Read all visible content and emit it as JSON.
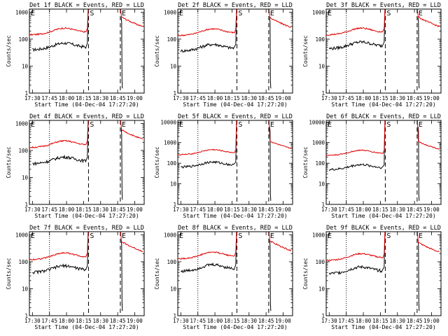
{
  "chart_data": [
    {
      "type": "line",
      "title": "Det 1f BLACK = Events, RED = LLD",
      "xlabel": "Start Time (04-Dec-04 17:27:20)",
      "ylabel": "Counts/sec",
      "x_ticks": [
        "17:30",
        "17:45",
        "18:00",
        "18:15",
        "18:30",
        "18:45",
        "19:00"
      ],
      "y_ticks": [
        "1",
        "10",
        "100",
        "1000"
      ],
      "ylim": [
        1,
        1300
      ],
      "yscale": "log",
      "markers": [
        "E",
        "S",
        "E"
      ],
      "series": [
        {
          "color": "#000000",
          "level": 50
        },
        {
          "color": "#e00000",
          "level": 180
        }
      ]
    },
    {
      "type": "line",
      "title": "Det 2f BLACK = Events, RED = LLD",
      "xlabel": "Start Time (04-Dec-04 17:27:20)",
      "ylabel": "Counts/sec",
      "x_ticks": [
        "17:30",
        "17:45",
        "18:00",
        "18:15",
        "18:30",
        "18:45",
        "19:00"
      ],
      "y_ticks": [
        "1",
        "10",
        "100",
        "1000"
      ],
      "ylim": [
        1,
        1300
      ],
      "yscale": "log",
      "markers": [
        "E",
        "S",
        "E"
      ],
      "series": [
        {
          "color": "#000000",
          "level": 45
        },
        {
          "color": "#e00000",
          "level": 170
        }
      ]
    },
    {
      "type": "line",
      "title": "Det 3f BLACK = Events, RED = LLD",
      "xlabel": "Start Time (04-Dec-04 17:27:20)",
      "ylabel": "Counts/sec",
      "x_ticks": [
        "17:30",
        "17:45",
        "18:00",
        "18:15",
        "18:30",
        "18:45",
        "19:00"
      ],
      "y_ticks": [
        "1",
        "10",
        "100",
        "1000"
      ],
      "ylim": [
        1,
        1300
      ],
      "yscale": "log",
      "markers": [
        "E",
        "S",
        "E"
      ],
      "series": [
        {
          "color": "#000000",
          "level": 55
        },
        {
          "color": "#e00000",
          "level": 180
        }
      ]
    },
    {
      "type": "line",
      "title": "Det 4f BLACK = Events, RED = LLD",
      "xlabel": "Start Time (04-Dec-04 17:27:20)",
      "ylabel": "Counts/sec",
      "x_ticks": [
        "17:30",
        "17:45",
        "18:00",
        "18:15",
        "18:30",
        "18:45",
        "19:00"
      ],
      "y_ticks": [
        "1",
        "10",
        "100",
        "1000"
      ],
      "ylim": [
        1,
        1300
      ],
      "yscale": "log",
      "markers": [
        "E",
        "S",
        "E"
      ],
      "series": [
        {
          "color": "#000000",
          "level": 40
        },
        {
          "color": "#e00000",
          "level": 160
        }
      ]
    },
    {
      "type": "line",
      "title": "Det 5f BLACK = Events, RED = LLD",
      "xlabel": "Start Time (04-Dec-04 17:27:20)",
      "ylabel": "Counts/sec",
      "x_ticks": [
        "17:30",
        "17:45",
        "18:00",
        "18:15",
        "18:30",
        "18:45",
        "19:00"
      ],
      "y_ticks": [
        "1",
        "10",
        "100",
        "1000",
        "10000"
      ],
      "ylim": [
        1,
        12000
      ],
      "yscale": "log",
      "markers": [
        "E",
        "S",
        "E"
      ],
      "series": [
        {
          "color": "#000000",
          "level": 80
        },
        {
          "color": "#e00000",
          "level": 320
        }
      ]
    },
    {
      "type": "line",
      "title": "Det 6f BLACK = Events, RED = LLD",
      "xlabel": "Start Time (04-Dec-04 17:27:20)",
      "ylabel": "Counts/sec",
      "x_ticks": [
        "17:30",
        "17:45",
        "18:00",
        "18:15",
        "18:30",
        "18:45",
        "19:00"
      ],
      "y_ticks": [
        "1",
        "10",
        "100",
        "1000",
        "10000"
      ],
      "ylim": [
        1,
        12000
      ],
      "yscale": "log",
      "markers": [
        "E",
        "S",
        "E"
      ],
      "series": [
        {
          "color": "#000000",
          "level": 60
        },
        {
          "color": "#e00000",
          "level": 300
        }
      ]
    },
    {
      "type": "line",
      "title": "Det 7f BLACK = Events, RED = LLD",
      "xlabel": "Start Time (04-Dec-04 17:27:20)",
      "ylabel": "Counts/sec",
      "x_ticks": [
        "17:30",
        "17:45",
        "18:00",
        "18:15",
        "18:30",
        "18:45",
        "19:00"
      ],
      "y_ticks": [
        "1",
        "10",
        "100",
        "1000"
      ],
      "ylim": [
        1,
        1300
      ],
      "yscale": "log",
      "markers": [
        "E",
        "S",
        "E"
      ],
      "series": [
        {
          "color": "#000000",
          "level": 50
        },
        {
          "color": "#e00000",
          "level": 150
        }
      ]
    },
    {
      "type": "line",
      "title": "Det 8f BLACK = Events, RED = LLD",
      "xlabel": "Start Time (04-Dec-04 17:27:20)",
      "ylabel": "Counts/sec",
      "x_ticks": [
        "17:30",
        "17:45",
        "18:00",
        "18:15",
        "18:30",
        "18:45",
        "19:00"
      ],
      "y_ticks": [
        "1",
        "10",
        "100",
        "1000"
      ],
      "ylim": [
        1,
        1300
      ],
      "yscale": "log",
      "markers": [
        "E",
        "S",
        "E"
      ],
      "series": [
        {
          "color": "#000000",
          "level": 55
        },
        {
          "color": "#e00000",
          "level": 160
        }
      ]
    },
    {
      "type": "line",
      "title": "Det 9f BLACK = Events, RED = LLD",
      "xlabel": "Start Time (04-Dec-04 17:27:20)",
      "ylabel": "Counts/sec",
      "x_ticks": [
        "17:30",
        "17:45",
        "18:00",
        "18:15",
        "18:30",
        "18:45",
        "19:00"
      ],
      "y_ticks": [
        "1",
        "10",
        "100",
        "1000"
      ],
      "ylim": [
        1,
        1300
      ],
      "yscale": "log",
      "markers": [
        "E",
        "S",
        "E"
      ],
      "series": [
        {
          "color": "#000000",
          "level": 45
        },
        {
          "color": "#e00000",
          "level": 140
        }
      ]
    }
  ]
}
